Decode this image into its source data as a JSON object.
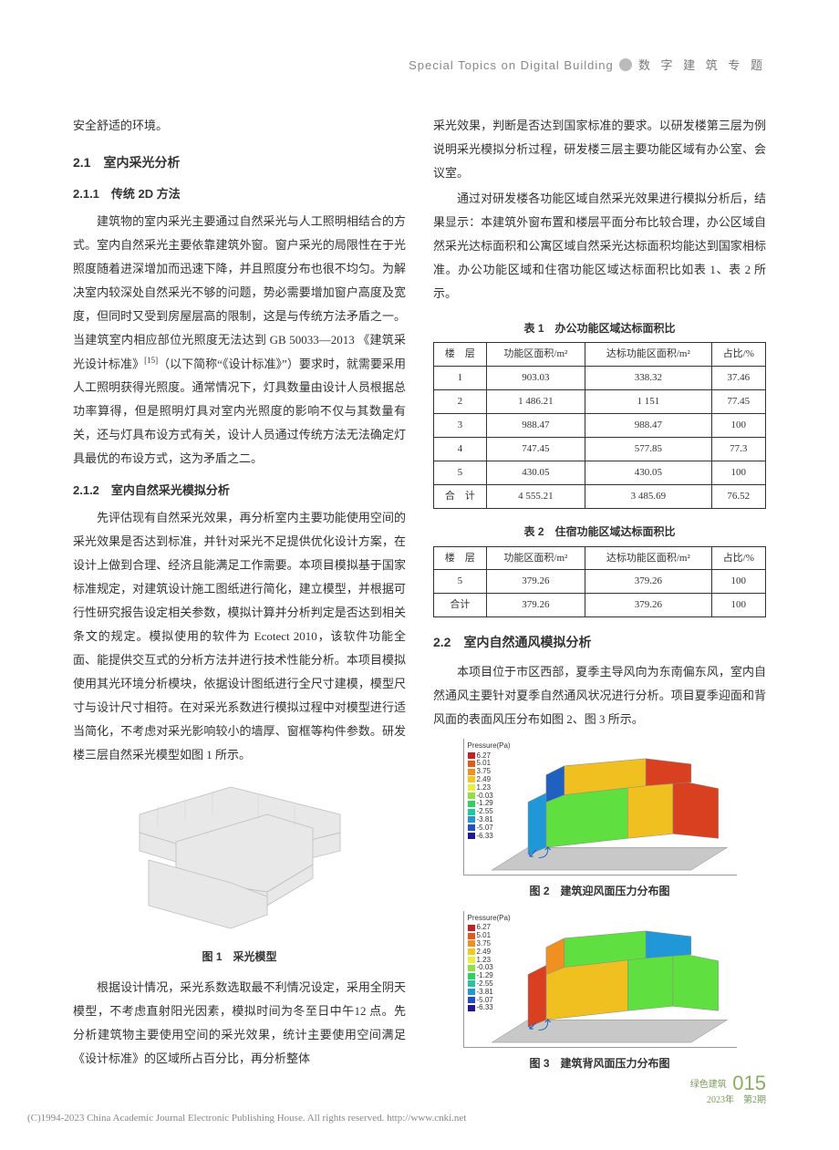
{
  "header": {
    "en": "Special Topics on Digital Building",
    "cn": "数 字 建 筑 专 题"
  },
  "left": {
    "p0": "安全舒适的环境。",
    "h21": "2.1　室内采光分析",
    "h211": "2.1.1　传统 2D 方法",
    "p211": "建筑物的室内采光主要通过自然采光与人工照明相结合的方式。室内自然采光主要依靠建筑外窗。窗户采光的局限性在于光照度随着进深增加而迅速下降，并且照度分布也很不均匀。为解决室内较深处自然采光不够的问题，势必需要增加窗户高度及宽度，但同时又受到房屋层高的限制，这是与传统方法矛盾之一。当建筑室内相应部位光照度无法达到 GB 50033—2013 《建筑采光设计标准》",
    "p211ref": "[15]",
    "p211b": "（以下简称“《设计标准》”）要求时，就需要采用人工照明获得光照度。通常情况下，灯具数量由设计人员根据总功率算得，但是照明灯具对室内光照度的影响不仅与其数量有关，还与灯具布设方式有关，设计人员通过传统方法无法确定灯具最优的布设方式，这为矛盾之二。",
    "h212": "2.1.2　室内自然采光模拟分析",
    "p212": "先评估现有自然采光效果，再分析室内主要功能使用空间的采光效果是否达到标准，并针对采光不足提供优化设计方案，在设计上做到合理、经济且能满足工作需要。本项目模拟基于国家标准规定，对建筑设计施工图纸进行简化，建立模型，并根据可行性研究报告设定相关参数，模拟计算并分析判定是否达到相关条文的规定。模拟使用的软件为 Ecotect 2010，该软件功能全面、能提供交互式的分析方法并进行技术性能分析。本项目模拟使用其光环境分析模块，依据设计图纸进行全尺寸建模，模型尺寸与设计尺寸相符。在对采光系数进行模拟过程中对模型进行适当简化，不考虑对采光影响较小的墙厚、窗框等构件参数。研发楼三层自然采光模型如图 1 所示。",
    "fig1_cap": "图 1　采光模型",
    "p_after_fig1": "根据设计情况，采光系数选取最不利情况设定，采用全阴天模型，不考虑直射阳光因素，模拟时间为冬至日中午12 点。先分析建筑物主要使用空间的采光效果，统计主要使用空间满足《设计标准》的区域所占百分比，再分析整体"
  },
  "right": {
    "p_top": "采光效果，判断是否达到国家标准的要求。以研发楼第三层为例说明采光模拟分析过程，研发楼三层主要功能区域有办公室、会议室。",
    "p_top2": "通过对研发楼各功能区域自然采光效果进行模拟分析后，结果显示：本建筑外窗布置和楼层平面分布比较合理，办公区域自然采光达标面积和公寓区域自然采光达标面积均能达到国家相标准。办公功能区域和住宿功能区域达标面积比如表 1、表 2 所示。",
    "h22": "2.2　室内自然通风模拟分析",
    "p22": "本项目位于市区西部，夏季主导风向为东南偏东风，室内自然通风主要针对夏季自然通风状况进行分析。项目夏季迎面和背风面的表面风压分布如图 2、图 3 所示。",
    "fig2_cap": "图 2　建筑迎风面压力分布图",
    "fig3_cap": "图 3　建筑背风面压力分布图"
  },
  "table1": {
    "caption": "表 1　办公功能区域达标面积比",
    "columns": [
      "楼　层",
      "功能区面积/m²",
      "达标功能区面积/m²",
      "占比/%"
    ],
    "rows": [
      [
        "1",
        "903.03",
        "338.32",
        "37.46"
      ],
      [
        "2",
        "1 486.21",
        "1 151",
        "77.45"
      ],
      [
        "3",
        "988.47",
        "988.47",
        "100"
      ],
      [
        "4",
        "747.45",
        "577.85",
        "77.3"
      ],
      [
        "5",
        "430.05",
        "430.05",
        "100"
      ],
      [
        "合　计",
        "4 555.21",
        "3 485.69",
        "76.52"
      ]
    ]
  },
  "table2": {
    "caption": "表 2　住宿功能区域达标面积比",
    "columns": [
      "楼　层",
      "功能区面积/m²",
      "达标功能区面积/m²",
      "占比/%"
    ],
    "rows": [
      [
        "5",
        "379.26",
        "379.26",
        "100"
      ],
      [
        "合计",
        "379.26",
        "379.26",
        "100"
      ]
    ]
  },
  "pressure_legend": {
    "title": "Pressure(Pa)",
    "values": [
      "6.27",
      "5.01",
      "3.75",
      "2.49",
      "1.23",
      "-0.03",
      "-1.29",
      "-2.55",
      "-3.81",
      "-5.07",
      "-6.33"
    ],
    "colors": [
      "#c62020",
      "#e05a1e",
      "#f09020",
      "#f6c81e",
      "#e8f03a",
      "#8fe040",
      "#30d060",
      "#20c8a0",
      "#2098d8",
      "#2050c8",
      "#201898"
    ]
  },
  "fig1_model": {
    "fill": "#e8e8e8",
    "stroke": "#bdbdbd"
  },
  "cfd_colors": {
    "high": "#d84020",
    "mid_high": "#f0c020",
    "mid": "#60e040",
    "low": "#2060c0",
    "floor": "#c0c0c0"
  },
  "footer": {
    "journal": "绿色建筑",
    "issue": "2023年　第2期",
    "page": "015"
  },
  "copyright": "(C)1994-2023 China Academic Journal Electronic Publishing House. All rights reserved.    http://www.cnki.net"
}
